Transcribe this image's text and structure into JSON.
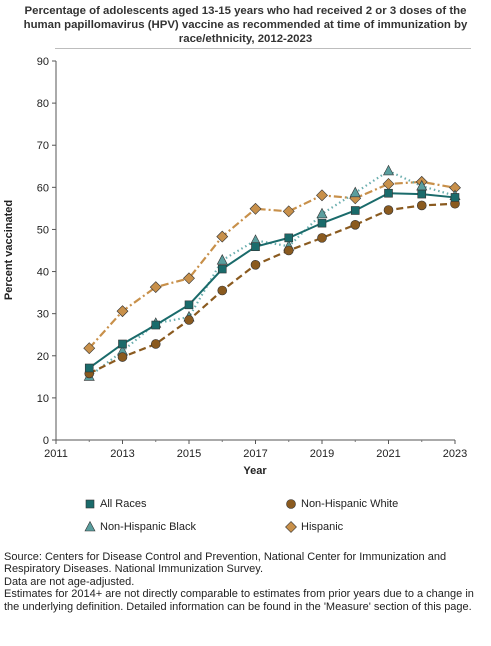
{
  "title": "Percentage of adolescents aged 13-15 years who had received 2 or 3 doses of the human papillomavirus (HPV) vaccine as recommended at time of immunization by race/ethnicity, 2012-2023",
  "footnotes": {
    "source": "Source: Centers for Disease Control and Prevention, National Center for Immunization and Respiratory Diseases. National Immunization Survey.",
    "age_adjusted": "Data are not age-adjusted.",
    "comparability": "Estimates for 2014+ are not directly comparable to estimates from prior years due to a change in the underlying definition. Detailed information can be found in the 'Measure' section of this page."
  },
  "chart_data": {
    "type": "line",
    "title": "Percentage of adolescents aged 13-15 years who had received 2 or 3 doses of the human papillomavirus (HPV) vaccine as recommended at time of immunization by race/ethnicity, 2012-2023",
    "xlabel": "Year",
    "ylabel": "Percent vaccinated",
    "xlim": [
      2011,
      2023
    ],
    "ylim": [
      0,
      90
    ],
    "xticks": [
      "2011",
      "2013",
      "2015",
      "2017",
      "2019",
      "2021",
      "2023"
    ],
    "yticks": [
      "0",
      "10",
      "20",
      "30",
      "40",
      "50",
      "60",
      "70",
      "80",
      "90"
    ],
    "grid": false,
    "legend_position": "bottom",
    "x": [
      2012,
      2013,
      2014,
      2015,
      2016,
      2017,
      2018,
      2019,
      2020,
      2021,
      2022,
      2023
    ],
    "series": [
      {
        "name": "All Races",
        "marker": "square",
        "line": "solid",
        "color": "#1a6b6b",
        "values": [
          17.1,
          22.8,
          27.3,
          32.1,
          40.6,
          45.9,
          48.0,
          51.5,
          54.5,
          58.6,
          58.4,
          57.6
        ]
      },
      {
        "name": "Non-Hispanic White",
        "marker": "circle",
        "line": "dashed",
        "color": "#8a5a1f",
        "values": [
          15.8,
          19.7,
          22.8,
          28.5,
          35.5,
          41.6,
          45.0,
          48.0,
          51.1,
          54.6,
          55.7,
          56.1
        ]
      },
      {
        "name": "Non-Hispanic Black",
        "marker": "triangle",
        "line": "dotted",
        "color": "#5a9e9e",
        "values": [
          15.1,
          21.1,
          27.7,
          29.2,
          42.7,
          47.4,
          46.0,
          53.7,
          58.7,
          63.9,
          60.3,
          58.0
        ]
      },
      {
        "name": "Hispanic",
        "marker": "diamond",
        "line": "dashdot",
        "color": "#c8904a",
        "values": [
          21.8,
          30.6,
          36.3,
          38.4,
          48.3,
          54.9,
          54.3,
          58.1,
          57.4,
          60.8,
          61.3,
          59.9
        ]
      }
    ]
  }
}
